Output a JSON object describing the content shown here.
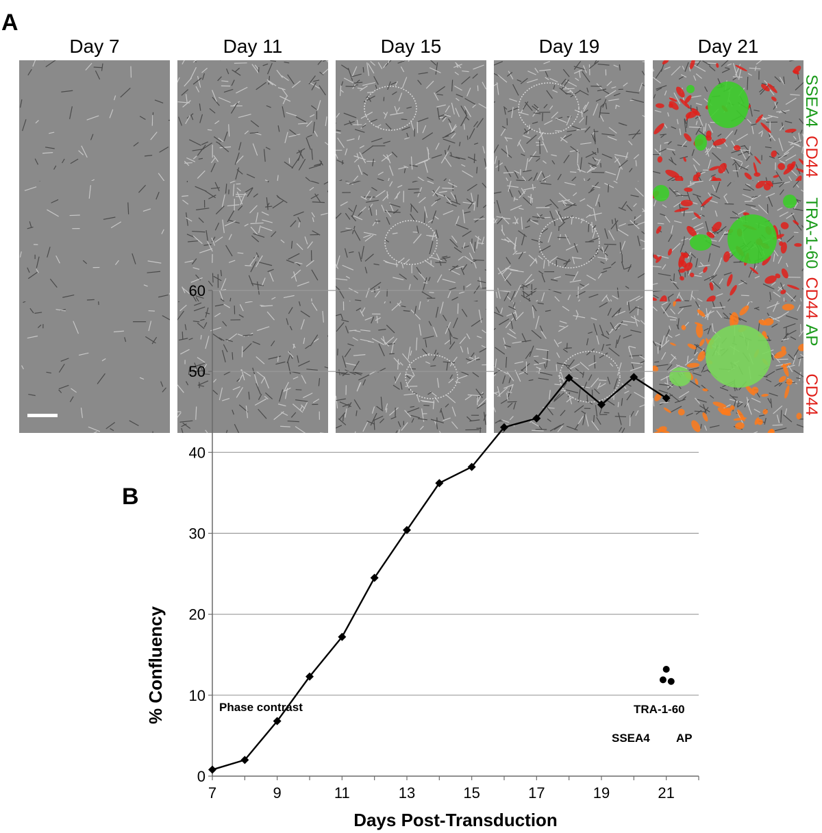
{
  "panel_a": {
    "letter": "A",
    "columns": [
      "Day 7",
      "Day 11",
      "Day 15",
      "Day 19",
      "Day 21"
    ],
    "row_labels": [
      {
        "green": "SSEA4",
        "red": "CD44"
      },
      {
        "green": "TRA-1-60",
        "red": "CD44"
      },
      {
        "green": "AP",
        "red": "CD44"
      }
    ],
    "colors": {
      "green": "#1a9a1a",
      "red": "#e0201a",
      "phase_bg": "#8a8a8a"
    },
    "scale_bar_color": "#ffffff"
  },
  "panel_b": {
    "letter": "B"
  },
  "chart_data": {
    "type": "line",
    "title": "",
    "xlabel": "Days Post-Transduction",
    "ylabel": "% Confluency",
    "xlim": [
      7,
      22
    ],
    "ylim": [
      0,
      60
    ],
    "xticks": [
      7,
      9,
      11,
      13,
      15,
      17,
      19,
      21
    ],
    "yticks": [
      0,
      10,
      20,
      30,
      40,
      50,
      60
    ],
    "grid": "horizontal",
    "series": [
      {
        "name": "Phase contrast",
        "marker": "diamond",
        "x": [
          7,
          8,
          9,
          10,
          11,
          12,
          13,
          14,
          15,
          16,
          17,
          18,
          19,
          20,
          21
        ],
        "y": [
          0.8,
          2.0,
          6.8,
          12.3,
          17.2,
          24.5,
          30.4,
          36.2,
          38.2,
          43.1,
          44.2,
          49.2,
          45.9,
          49.3,
          46.7
        ]
      }
    ],
    "points": [
      {
        "name": "SSEA4",
        "x": 20.9,
        "y": 11.9
      },
      {
        "name": "TRA-1-60",
        "x": 21.0,
        "y": 13.2
      },
      {
        "name": "AP",
        "x": 21.15,
        "y": 11.7
      }
    ],
    "annotations": {
      "phase": "Phase contrast",
      "tra": "TRA-1-60",
      "ssea4": "SSEA4",
      "ap": "AP"
    }
  }
}
